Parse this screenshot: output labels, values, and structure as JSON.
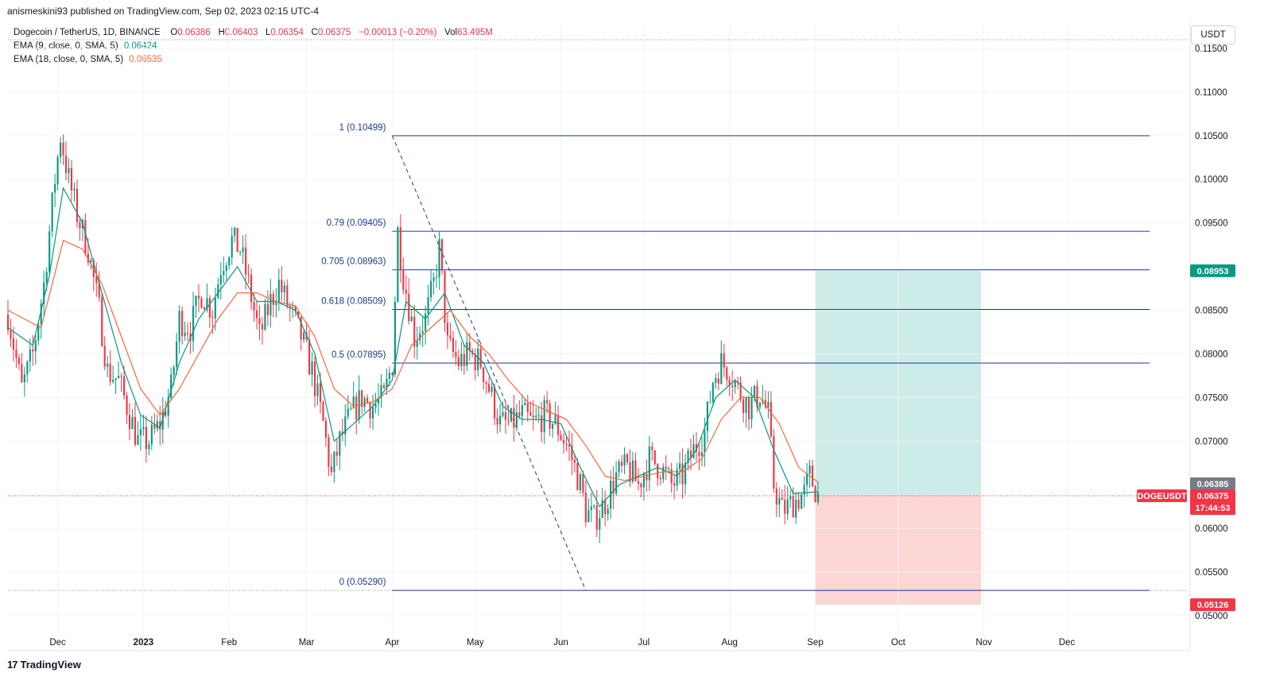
{
  "publisher": "anismeskini93 published on TradingView.com, Sep 02, 2023 02:15 UTC-4",
  "legend": {
    "symbol": "Dogecoin / TetherUS, 1D, BINANCE",
    "o_label": "O",
    "o_value": "0.06386",
    "h_label": "H",
    "h_value": "0.06403",
    "l_label": "L",
    "l_value": "0.06354",
    "c_label": "C",
    "c_value": "0.06375",
    "change": "−0.00013 (−0.20%)",
    "vol_label": "Vol",
    "vol_value": "63.495M",
    "ema1_label": "EMA (9, close, 0, SMA, 5)",
    "ema1_value": "0.06424",
    "ema2_label": "EMA (18, close, 0, SMA, 5)",
    "ema2_value": "0.06535"
  },
  "currency": "USDT",
  "branding": {
    "logo_mark": "17",
    "name": "TradingView"
  },
  "colors": {
    "up": "#089981",
    "down": "#f23645",
    "fib": "#1e3a8a",
    "ema9": "#089981",
    "ema18": "#f7673c",
    "profit_zone": "#cdebe8",
    "loss_zone": "#fcd5d5"
  },
  "chart_data": {
    "type": "candlestick",
    "title": "",
    "y_axis": {
      "ylim": [
        0.048,
        0.118
      ],
      "ticks": [
        0.115,
        0.11,
        0.105,
        0.1,
        0.095,
        0.085,
        0.08,
        0.075,
        0.07,
        0.06,
        0.055,
        0.05
      ],
      "tick_labels": [
        "0.11500",
        "0.11000",
        "0.10500",
        "0.10000",
        "0.09500",
        "0.08500",
        "0.08000",
        "0.07500",
        "0.07000",
        "0.06000",
        "0.05500",
        "0.05000"
      ]
    },
    "x_axis": {
      "range": [
        "2022-11-13",
        "2024-01-14"
      ],
      "ticks": [
        {
          "date": "2022-12-01",
          "label": "Dec",
          "bold": false
        },
        {
          "date": "2023-01-01",
          "label": "2023",
          "bold": true
        },
        {
          "date": "2023-02-01",
          "label": "Feb",
          "bold": false
        },
        {
          "date": "2023-03-01",
          "label": "Mar",
          "bold": false
        },
        {
          "date": "2023-04-01",
          "label": "Apr",
          "bold": false
        },
        {
          "date": "2023-05-01",
          "label": "May",
          "bold": false
        },
        {
          "date": "2023-06-01",
          "label": "Jun",
          "bold": false
        },
        {
          "date": "2023-07-01",
          "label": "Jul",
          "bold": false
        },
        {
          "date": "2023-08-01",
          "label": "Aug",
          "bold": false
        },
        {
          "date": "2023-09-01",
          "label": "Sep",
          "bold": false
        },
        {
          "date": "2023-10-01",
          "label": "Oct",
          "bold": false
        },
        {
          "date": "2023-11-01",
          "label": "Nov",
          "bold": false
        },
        {
          "date": "2023-12-01",
          "label": "Dec",
          "bold": false
        }
      ]
    },
    "price_path": [
      [
        "2022-11-13",
        0.0845
      ],
      [
        "2022-11-18",
        0.076
      ],
      [
        "2022-11-22",
        0.08
      ],
      [
        "2022-11-26",
        0.088
      ],
      [
        "2022-11-30",
        0.1
      ],
      [
        "2022-12-02",
        0.105
      ],
      [
        "2022-12-05",
        0.1
      ],
      [
        "2022-12-08",
        0.096
      ],
      [
        "2022-12-12",
        0.092
      ],
      [
        "2022-12-16",
        0.085
      ],
      [
        "2022-12-19",
        0.078
      ],
      [
        "2022-12-23",
        0.077
      ],
      [
        "2022-12-27",
        0.073
      ],
      [
        "2022-12-30",
        0.07
      ],
      [
        "2023-01-03",
        0.07
      ],
      [
        "2023-01-07",
        0.072
      ],
      [
        "2023-01-11",
        0.076
      ],
      [
        "2023-01-14",
        0.084
      ],
      [
        "2023-01-18",
        0.083
      ],
      [
        "2023-01-22",
        0.087
      ],
      [
        "2023-01-26",
        0.085
      ],
      [
        "2023-01-29",
        0.09
      ],
      [
        "2023-02-02",
        0.093
      ],
      [
        "2023-02-05",
        0.092
      ],
      [
        "2023-02-08",
        0.088
      ],
      [
        "2023-02-12",
        0.082
      ],
      [
        "2023-02-16",
        0.086
      ],
      [
        "2023-02-19",
        0.088
      ],
      [
        "2023-02-23",
        0.085
      ],
      [
        "2023-02-27",
        0.082
      ],
      [
        "2023-03-03",
        0.078
      ],
      [
        "2023-03-07",
        0.072
      ],
      [
        "2023-03-10",
        0.066
      ],
      [
        "2023-03-13",
        0.07
      ],
      [
        "2023-03-17",
        0.073
      ],
      [
        "2023-03-21",
        0.075
      ],
      [
        "2023-03-25",
        0.074
      ],
      [
        "2023-03-29",
        0.075
      ],
      [
        "2023-04-01",
        0.079
      ],
      [
        "2023-04-03",
        0.094
      ],
      [
        "2023-04-05",
        0.089
      ],
      [
        "2023-04-09",
        0.082
      ],
      [
        "2023-04-13",
        0.084
      ],
      [
        "2023-04-16",
        0.088
      ],
      [
        "2023-04-18",
        0.092
      ],
      [
        "2023-04-21",
        0.081
      ],
      [
        "2023-04-25",
        0.079
      ],
      [
        "2023-04-29",
        0.08
      ],
      [
        "2023-05-03",
        0.079
      ],
      [
        "2023-05-06",
        0.076
      ],
      [
        "2023-05-10",
        0.072
      ],
      [
        "2023-05-14",
        0.072
      ],
      [
        "2023-05-18",
        0.073
      ],
      [
        "2023-05-22",
        0.072
      ],
      [
        "2023-05-26",
        0.073
      ],
      [
        "2023-05-30",
        0.072
      ],
      [
        "2023-06-04",
        0.069
      ],
      [
        "2023-06-08",
        0.065
      ],
      [
        "2023-06-10",
        0.062
      ],
      [
        "2023-06-13",
        0.061
      ],
      [
        "2023-06-17",
        0.063
      ],
      [
        "2023-06-21",
        0.066
      ],
      [
        "2023-06-25",
        0.067
      ],
      [
        "2023-06-29",
        0.065
      ],
      [
        "2023-07-03",
        0.068
      ],
      [
        "2023-07-07",
        0.067
      ],
      [
        "2023-07-11",
        0.065
      ],
      [
        "2023-07-15",
        0.066
      ],
      [
        "2023-07-19",
        0.069
      ],
      [
        "2023-07-23",
        0.071
      ],
      [
        "2023-07-26",
        0.077
      ],
      [
        "2023-07-29",
        0.079
      ],
      [
        "2023-08-01",
        0.078
      ],
      [
        "2023-08-04",
        0.076
      ],
      [
        "2023-08-08",
        0.074
      ],
      [
        "2023-08-12",
        0.0755
      ],
      [
        "2023-08-15",
        0.073
      ],
      [
        "2023-08-17",
        0.065
      ],
      [
        "2023-08-20",
        0.062
      ],
      [
        "2023-08-24",
        0.063
      ],
      [
        "2023-08-28",
        0.064
      ],
      [
        "2023-08-30",
        0.066
      ],
      [
        "2023-09-02",
        0.0638
      ]
    ],
    "ema9_path": [
      [
        "2022-11-13",
        0.083
      ],
      [
        "2022-11-22",
        0.081
      ],
      [
        "2022-11-28",
        0.089
      ],
      [
        "2022-12-03",
        0.099
      ],
      [
        "2022-12-10",
        0.095
      ],
      [
        "2022-12-17",
        0.087
      ],
      [
        "2022-12-24",
        0.079
      ],
      [
        "2022-12-31",
        0.073
      ],
      [
        "2023-01-07",
        0.0715
      ],
      [
        "2023-01-14",
        0.079
      ],
      [
        "2023-01-21",
        0.084
      ],
      [
        "2023-01-28",
        0.087
      ],
      [
        "2023-02-04",
        0.09
      ],
      [
        "2023-02-11",
        0.086
      ],
      [
        "2023-02-18",
        0.086
      ],
      [
        "2023-02-25",
        0.085
      ],
      [
        "2023-03-04",
        0.08
      ],
      [
        "2023-03-11",
        0.07
      ],
      [
        "2023-03-18",
        0.072
      ],
      [
        "2023-03-25",
        0.074
      ],
      [
        "2023-04-01",
        0.077
      ],
      [
        "2023-04-06",
        0.086
      ],
      [
        "2023-04-13",
        0.084
      ],
      [
        "2023-04-20",
        0.087
      ],
      [
        "2023-04-27",
        0.081
      ],
      [
        "2023-05-04",
        0.079
      ],
      [
        "2023-05-11",
        0.074
      ],
      [
        "2023-05-18",
        0.0725
      ],
      [
        "2023-05-25",
        0.0725
      ],
      [
        "2023-06-01",
        0.072
      ],
      [
        "2023-06-08",
        0.067
      ],
      [
        "2023-06-15",
        0.0625
      ],
      [
        "2023-06-22",
        0.065
      ],
      [
        "2023-06-29",
        0.066
      ],
      [
        "2023-07-06",
        0.067
      ],
      [
        "2023-07-13",
        0.066
      ],
      [
        "2023-07-20",
        0.069
      ],
      [
        "2023-07-27",
        0.075
      ],
      [
        "2023-08-03",
        0.077
      ],
      [
        "2023-08-10",
        0.075
      ],
      [
        "2023-08-17",
        0.069
      ],
      [
        "2023-08-24",
        0.064
      ],
      [
        "2023-09-02",
        0.0642
      ]
    ],
    "ema18_path": [
      [
        "2022-11-13",
        0.085
      ],
      [
        "2022-11-25",
        0.083
      ],
      [
        "2022-12-03",
        0.093
      ],
      [
        "2022-12-10",
        0.092
      ],
      [
        "2022-12-17",
        0.088
      ],
      [
        "2022-12-24",
        0.082
      ],
      [
        "2022-12-31",
        0.076
      ],
      [
        "2023-01-07",
        0.073
      ],
      [
        "2023-01-14",
        0.076
      ],
      [
        "2023-01-21",
        0.08
      ],
      [
        "2023-01-28",
        0.084
      ],
      [
        "2023-02-04",
        0.087
      ],
      [
        "2023-02-11",
        0.087
      ],
      [
        "2023-02-18",
        0.086
      ],
      [
        "2023-02-25",
        0.0855
      ],
      [
        "2023-03-04",
        0.082
      ],
      [
        "2023-03-11",
        0.076
      ],
      [
        "2023-03-18",
        0.074
      ],
      [
        "2023-03-25",
        0.0745
      ],
      [
        "2023-04-01",
        0.076
      ],
      [
        "2023-04-08",
        0.081
      ],
      [
        "2023-04-15",
        0.083
      ],
      [
        "2023-04-22",
        0.085
      ],
      [
        "2023-04-29",
        0.082
      ],
      [
        "2023-05-06",
        0.08
      ],
      [
        "2023-05-13",
        0.077
      ],
      [
        "2023-05-20",
        0.0745
      ],
      [
        "2023-05-27",
        0.0735
      ],
      [
        "2023-06-03",
        0.0725
      ],
      [
        "2023-06-10",
        0.0695
      ],
      [
        "2023-06-17",
        0.066
      ],
      [
        "2023-06-24",
        0.0655
      ],
      [
        "2023-07-01",
        0.066
      ],
      [
        "2023-07-08",
        0.0665
      ],
      [
        "2023-07-15",
        0.0665
      ],
      [
        "2023-07-22",
        0.068
      ],
      [
        "2023-07-29",
        0.0725
      ],
      [
        "2023-08-05",
        0.075
      ],
      [
        "2023-08-12",
        0.075
      ],
      [
        "2023-08-19",
        0.072
      ],
      [
        "2023-08-26",
        0.067
      ],
      [
        "2023-09-02",
        0.0653
      ]
    ],
    "fibonacci": {
      "start_date": "2023-04-01",
      "end_date": "2023-12-31",
      "levels": [
        {
          "ratio": "1",
          "price": 0.10499,
          "label": "1 (0.10499)"
        },
        {
          "ratio": "0.79",
          "price": 0.09405,
          "label": "0.79 (0.09405)"
        },
        {
          "ratio": "0.705",
          "price": 0.08963,
          "label": "0.705 (0.08963)"
        },
        {
          "ratio": "0.618",
          "price": 0.08509,
          "label": "0.618 (0.08509)"
        },
        {
          "ratio": "0.5",
          "price": 0.07895,
          "label": "0.5 (0.07895)"
        },
        {
          "ratio": "0",
          "price": 0.0529,
          "label": "0 (0.05290)"
        }
      ],
      "trend_line": {
        "from": [
          "2023-04-01",
          0.10499
        ],
        "to": [
          "2023-06-10",
          0.0529
        ]
      }
    },
    "position": {
      "start_date": "2023-09-01",
      "end_date": "2023-10-31",
      "entry": 0.06385,
      "target": 0.08953,
      "stop": 0.05126
    },
    "reference_lines": [
      {
        "price": 0.116,
        "style": "dotted"
      },
      {
        "price": 0.0529,
        "style": "dotted"
      },
      {
        "price": 0.06375,
        "style": "dotted-red"
      }
    ],
    "price_tags": [
      {
        "label": "0.08953",
        "price": 0.08953,
        "color": "#089981"
      },
      {
        "label": "0.06385",
        "price": 0.06385,
        "color": "#787b86"
      },
      {
        "label": "0.06375",
        "price": 0.06375,
        "color": "#f23645",
        "symbol": "DOGEUSDT",
        "countdown": "17:44:53"
      },
      {
        "label": "0.05126",
        "price": 0.05126,
        "color": "#f23645"
      }
    ]
  }
}
